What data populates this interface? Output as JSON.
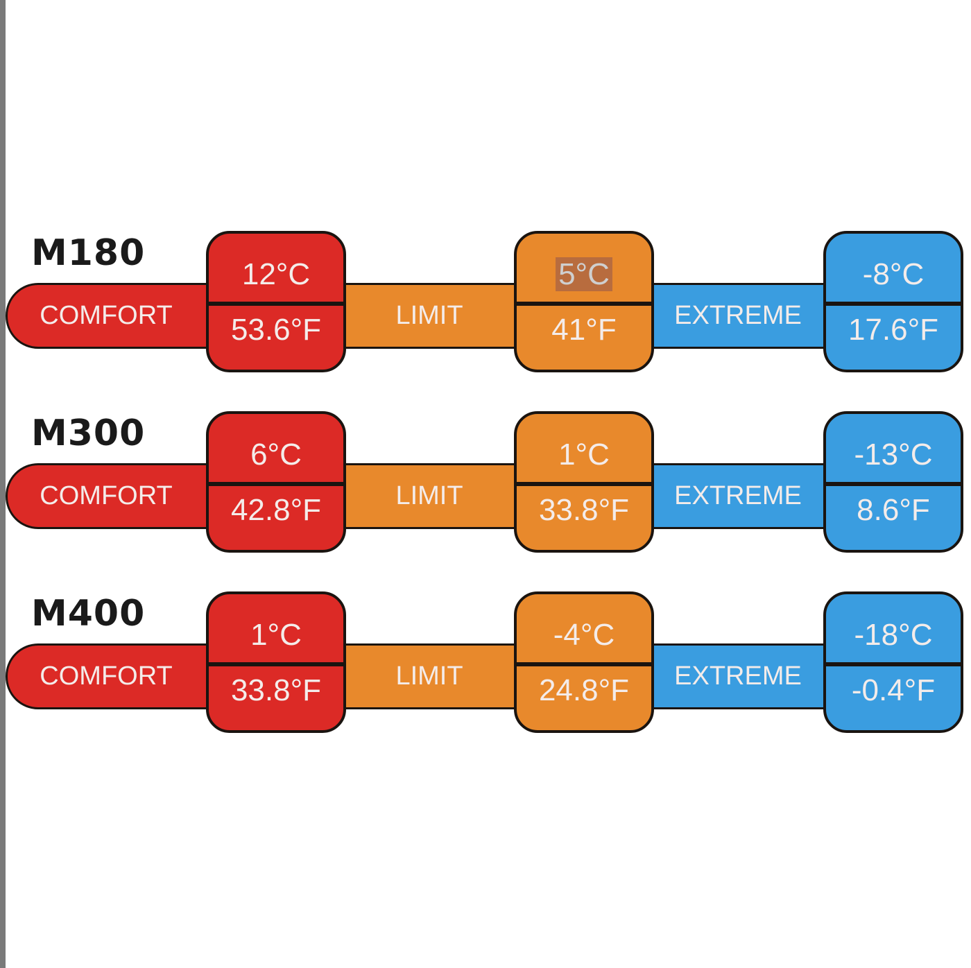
{
  "colors": {
    "comfort": "#dc2a26",
    "limit": "#e8892c",
    "extreme": "#3a9de0"
  },
  "labels": {
    "comfort": "COMFORT",
    "limit": "LIMIT",
    "extreme": "EXTREME"
  },
  "rows": [
    {
      "model": "M180",
      "comfort": {
        "c": "12°C",
        "f": "53.6°F"
      },
      "limit": {
        "c": "5°C",
        "f": "41°F",
        "highlighted": true
      },
      "extreme": {
        "c": "-8°C",
        "f": "17.6°F"
      }
    },
    {
      "model": "M300",
      "comfort": {
        "c": "6°C",
        "f": "42.8°F"
      },
      "limit": {
        "c": "1°C",
        "f": "33.8°F"
      },
      "extreme": {
        "c": "-13°C",
        "f": "8.6°F"
      }
    },
    {
      "model": "M400",
      "comfort": {
        "c": "1°C",
        "f": "33.8°F"
      },
      "limit": {
        "c": "-4°C",
        "f": "24.8°F"
      },
      "extreme": {
        "c": "-18°C",
        "f": "-0.4°F"
      }
    }
  ]
}
